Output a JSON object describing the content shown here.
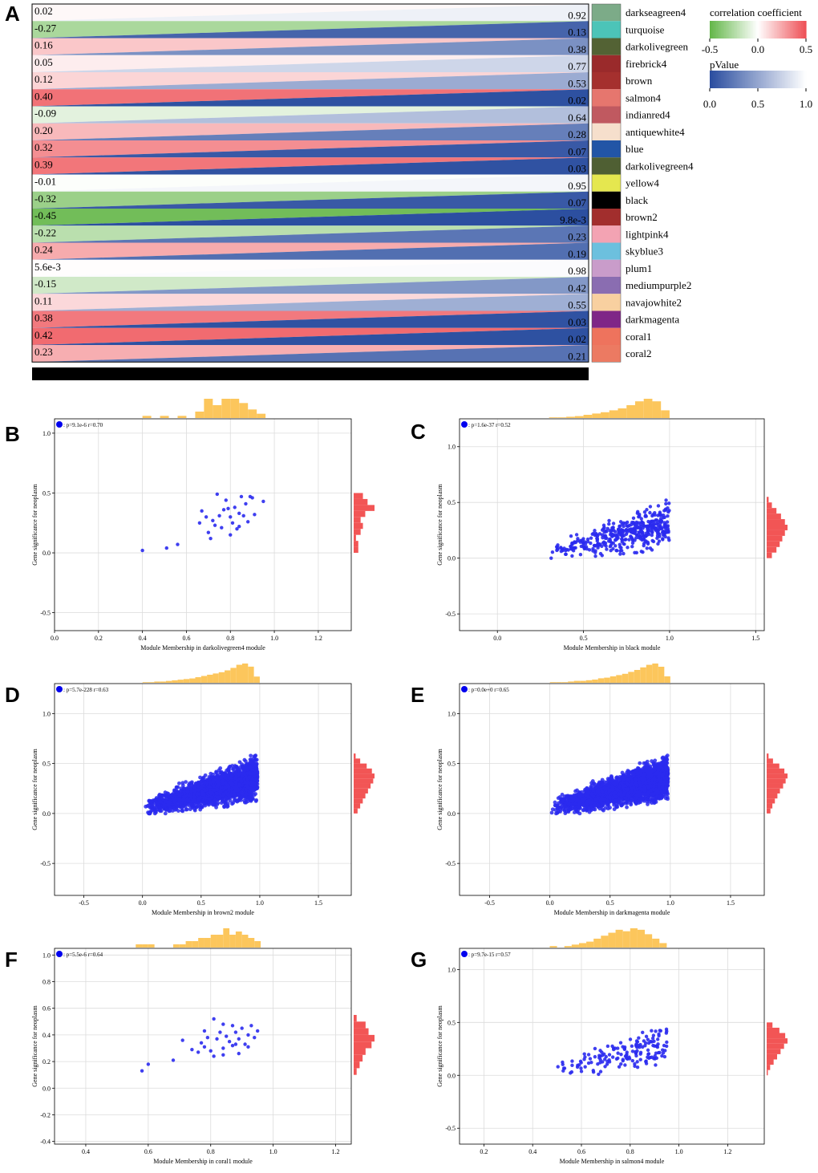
{
  "panel_labels": [
    "A",
    "B",
    "C",
    "D",
    "E",
    "F",
    "G"
  ],
  "colors": {
    "green": "#62b647",
    "red": "#ee4f55",
    "blue": "#2a4d9f",
    "scatter": "#2a2aee",
    "hist_top": "#fcc65c",
    "hist_right": "#f25555"
  },
  "heatmap": {
    "type": "heatmap",
    "rows": [
      {
        "module": "darkseagreen4",
        "corr": 0.02,
        "corr_label": "0.02",
        "p": 0.92,
        "p_label": "0.92",
        "swatch": "#7cab88"
      },
      {
        "module": "turquoise",
        "corr": -0.27,
        "corr_label": "-0.27",
        "p": 0.13,
        "p_label": "0.13",
        "swatch": "#4cc4b8"
      },
      {
        "module": "darkolivegreen",
        "corr": 0.16,
        "corr_label": "0.16",
        "p": 0.38,
        "p_label": "0.38",
        "swatch": "#536234"
      },
      {
        "module": "firebrick4",
        "corr": 0.05,
        "corr_label": "0.05",
        "p": 0.77,
        "p_label": "0.77",
        "swatch": "#9a2a2b"
      },
      {
        "module": "brown",
        "corr": 0.12,
        "corr_label": "0.12",
        "p": 0.53,
        "p_label": "0.53",
        "swatch": "#a5302e"
      },
      {
        "module": "salmon4",
        "corr": 0.4,
        "corr_label": "0.40",
        "p": 0.02,
        "p_label": "0.02",
        "swatch": "#e6766e"
      },
      {
        "module": "indianred4",
        "corr": -0.09,
        "corr_label": "-0.09",
        "p": 0.64,
        "p_label": "0.64",
        "swatch": "#c05960"
      },
      {
        "module": "antiquewhite4",
        "corr": 0.2,
        "corr_label": "0.20",
        "p": 0.28,
        "p_label": "0.28",
        "swatch": "#f6dfcc"
      },
      {
        "module": "blue",
        "corr": 0.32,
        "corr_label": "0.32",
        "p": 0.07,
        "p_label": "0.07",
        "swatch": "#2255a6"
      },
      {
        "module": "darkolivegreen4",
        "corr": 0.39,
        "corr_label": "0.39",
        "p": 0.03,
        "p_label": "0.03",
        "swatch": "#4f5f33"
      },
      {
        "module": "yellow4",
        "corr": -0.01,
        "corr_label": "-0.01",
        "p": 0.95,
        "p_label": "0.95",
        "swatch": "#e5e74f"
      },
      {
        "module": "black",
        "corr": -0.32,
        "corr_label": "-0.32",
        "p": 0.07,
        "p_label": "0.07",
        "swatch": "#000000"
      },
      {
        "module": "brown2",
        "corr": -0.45,
        "corr_label": "-0.45",
        "p": 0.0098,
        "p_label": "9.8e-3",
        "swatch": "#a22e2d"
      },
      {
        "module": "lightpink4",
        "corr": -0.22,
        "corr_label": "-0.22",
        "p": 0.23,
        "p_label": "0.23",
        "swatch": "#f3a3b3"
      },
      {
        "module": "skyblue3",
        "corr": 0.24,
        "corr_label": "0.24",
        "p": 0.19,
        "p_label": "0.19",
        "swatch": "#6cc0de"
      },
      {
        "module": "plum1",
        "corr": 0.0056,
        "corr_label": "5.6e-3",
        "p": 0.98,
        "p_label": "0.98",
        "swatch": "#c99cca"
      },
      {
        "module": "mediumpurple2",
        "corr": -0.15,
        "corr_label": "-0.15",
        "p": 0.42,
        "p_label": "0.42",
        "swatch": "#8a6db1"
      },
      {
        "module": "navajowhite2",
        "corr": 0.11,
        "corr_label": "0.11",
        "p": 0.55,
        "p_label": "0.55",
        "swatch": "#f8d0a0"
      },
      {
        "module": "darkmagenta",
        "corr": 0.38,
        "corr_label": "0.38",
        "p": 0.03,
        "p_label": "0.03",
        "swatch": "#7f2687"
      },
      {
        "module": "coral1",
        "corr": 0.42,
        "corr_label": "0.42",
        "p": 0.02,
        "p_label": "0.02",
        "swatch": "#ee735d"
      },
      {
        "module": "coral2",
        "corr": 0.23,
        "corr_label": "0.23",
        "p": 0.21,
        "p_label": "0.21",
        "swatch": "#ec7a62"
      }
    ],
    "legend_corr": {
      "title": "correlation coefficient",
      "ticks": [
        "-0.5",
        "0.0",
        "0.5"
      ],
      "range": [
        -0.5,
        0.5
      ]
    },
    "legend_p": {
      "title": "pValue",
      "ticks": [
        "0.0",
        "0.5",
        "1.0"
      ],
      "range": [
        0,
        1
      ]
    }
  },
  "chart_data": [
    {
      "panel": "B",
      "type": "scatter",
      "annotation": ": p=9.1e-6 r=0.70",
      "xlabel": "Module Membership in darkolivegreen4 module",
      "ylabel": "Gene significance for neoplasm",
      "xlim": [
        0.0,
        1.35
      ],
      "ylim": [
        -0.65,
        1.12
      ],
      "xticks": [
        0.0,
        0.2,
        0.4,
        0.6,
        0.8,
        1.0,
        1.2
      ],
      "xtick_labels": [
        "0.0",
        "0.2",
        "0.4",
        "0.6",
        "0.8",
        "1.0",
        "1.2"
      ],
      "yticks": [
        -0.5,
        0.0,
        0.5,
        1.0
      ],
      "ytick_labels": [
        "-0.5",
        "0.0",
        "0.5",
        "1.0"
      ],
      "points": [
        [
          0.4,
          0.02
        ],
        [
          0.51,
          0.04
        ],
        [
          0.56,
          0.07
        ],
        [
          0.66,
          0.25
        ],
        [
          0.67,
          0.35
        ],
        [
          0.69,
          0.3
        ],
        [
          0.7,
          0.17
        ],
        [
          0.71,
          0.12
        ],
        [
          0.72,
          0.27
        ],
        [
          0.73,
          0.23
        ],
        [
          0.74,
          0.49
        ],
        [
          0.75,
          0.31
        ],
        [
          0.76,
          0.21
        ],
        [
          0.77,
          0.36
        ],
        [
          0.78,
          0.44
        ],
        [
          0.79,
          0.37
        ],
        [
          0.8,
          0.15
        ],
        [
          0.8,
          0.3
        ],
        [
          0.81,
          0.25
        ],
        [
          0.82,
          0.38
        ],
        [
          0.83,
          0.2
        ],
        [
          0.84,
          0.33
        ],
        [
          0.84,
          0.22
        ],
        [
          0.85,
          0.47
        ],
        [
          0.86,
          0.31
        ],
        [
          0.87,
          0.41
        ],
        [
          0.88,
          0.26
        ],
        [
          0.89,
          0.47
        ],
        [
          0.9,
          0.46
        ],
        [
          0.91,
          0.32
        ],
        [
          0.95,
          0.43
        ]
      ],
      "hist_x": {
        "bins": [
          0.4,
          0.44,
          0.48,
          0.52,
          0.56,
          0.6,
          0.64,
          0.68,
          0.72,
          0.76,
          0.8,
          0.84,
          0.88,
          0.92
        ],
        "counts": [
          1,
          0,
          1,
          0,
          1,
          0,
          3,
          9,
          6,
          9,
          9,
          7,
          4,
          2
        ]
      },
      "hist_y": {
        "bins": [
          0.0,
          0.05,
          0.1,
          0.15,
          0.2,
          0.25,
          0.3,
          0.35,
          0.4,
          0.45
        ],
        "counts": [
          2,
          2,
          1,
          3,
          4,
          3,
          5,
          9,
          6,
          4
        ]
      }
    },
    {
      "panel": "C",
      "type": "scatter",
      "annotation": ": p=1.6e-37 r=0.52",
      "xlabel": "Module Membership in black module",
      "ylabel": "Gene significance for neoplasm",
      "xlim": [
        -0.22,
        1.55
      ],
      "ylim": [
        -0.65,
        1.25
      ],
      "xticks": [
        0.0,
        0.5,
        1.0,
        1.5
      ],
      "xtick_labels": [
        "0.0",
        "0.5",
        "1.0",
        "1.5"
      ],
      "yticks": [
        -0.5,
        0.0,
        0.5,
        1.0
      ],
      "ytick_labels": [
        "-0.5",
        "0.0",
        "0.5",
        "1.0"
      ],
      "cloud": {
        "n": 420,
        "x_min": 0.3,
        "x_max": 1.0,
        "y_min": 0.0,
        "y_max": 0.52,
        "seed": 7
      },
      "hist_x": {
        "bins": [
          0.3,
          0.35,
          0.4,
          0.45,
          0.5,
          0.55,
          0.6,
          0.65,
          0.7,
          0.75,
          0.8,
          0.85,
          0.9,
          0.95
        ],
        "counts": [
          1,
          1,
          2,
          3,
          5,
          7,
          9,
          12,
          15,
          20,
          26,
          30,
          26,
          12
        ]
      },
      "hist_y": {
        "bins": [
          0.0,
          0.05,
          0.1,
          0.15,
          0.2,
          0.25,
          0.3,
          0.35,
          0.4,
          0.45,
          0.5
        ],
        "counts": [
          8,
          15,
          20,
          24,
          28,
          32,
          28,
          22,
          15,
          8,
          3
        ]
      }
    },
    {
      "panel": "D",
      "type": "scatter",
      "annotation": ": p=5.7e-228 r=0.63",
      "xlabel": "Module Membership in brown2 module",
      "ylabel": "Gene significance for neoplasm",
      "xlim": [
        -0.75,
        1.78
      ],
      "ylim": [
        -0.82,
        1.3
      ],
      "xticks": [
        -0.5,
        0.0,
        0.5,
        1.0,
        1.5
      ],
      "xtick_labels": [
        "-0.5",
        "0.0",
        "0.5",
        "1.0",
        "1.5"
      ],
      "yticks": [
        -0.5,
        0.0,
        0.5,
        1.0
      ],
      "ytick_labels": [
        "-0.5",
        "0.0",
        "0.5",
        "1.0"
      ],
      "cloud": {
        "n": 2200,
        "x_min": 0.0,
        "x_max": 0.98,
        "y_min": 0.0,
        "y_max": 0.58,
        "seed": 19
      },
      "hist_x": {
        "bins": [
          0.0,
          0.05,
          0.1,
          0.15,
          0.2,
          0.25,
          0.3,
          0.35,
          0.4,
          0.45,
          0.5,
          0.55,
          0.6,
          0.65,
          0.7,
          0.75,
          0.8,
          0.85,
          0.9,
          0.95
        ],
        "counts": [
          1,
          1,
          2,
          2,
          3,
          4,
          5,
          6,
          7,
          9,
          11,
          13,
          15,
          17,
          20,
          24,
          29,
          31,
          26,
          10
        ]
      },
      "hist_y": {
        "bins": [
          0.0,
          0.05,
          0.1,
          0.15,
          0.2,
          0.25,
          0.3,
          0.35,
          0.4,
          0.45,
          0.5,
          0.55
        ],
        "counts": [
          6,
          10,
          14,
          18,
          22,
          26,
          30,
          32,
          28,
          20,
          10,
          3
        ]
      }
    },
    {
      "panel": "E",
      "type": "scatter",
      "annotation": ": p=0.0e+0 r=0.65",
      "xlabel": "Module Membership in darkmagenta module",
      "ylabel": "Gene significance for neoplasm",
      "xlim": [
        -0.75,
        1.78
      ],
      "ylim": [
        -0.82,
        1.3
      ],
      "xticks": [
        -0.5,
        0.0,
        0.5,
        1.0,
        1.5
      ],
      "xtick_labels": [
        "-0.5",
        "0.0",
        "0.5",
        "1.0",
        "1.5"
      ],
      "yticks": [
        -0.5,
        0.0,
        0.5,
        1.0
      ],
      "ytick_labels": [
        "-0.5",
        "0.0",
        "0.5",
        "1.0"
      ],
      "cloud": {
        "n": 2400,
        "x_min": 0.0,
        "x_max": 0.98,
        "y_min": 0.0,
        "y_max": 0.58,
        "seed": 31
      },
      "hist_x": {
        "bins": [
          0.0,
          0.05,
          0.1,
          0.15,
          0.2,
          0.25,
          0.3,
          0.35,
          0.4,
          0.45,
          0.5,
          0.55,
          0.6,
          0.65,
          0.7,
          0.75,
          0.8,
          0.85,
          0.9,
          0.95
        ],
        "counts": [
          1,
          1,
          1,
          2,
          3,
          3,
          4,
          5,
          7,
          8,
          10,
          12,
          14,
          17,
          20,
          24,
          28,
          30,
          25,
          10
        ]
      },
      "hist_y": {
        "bins": [
          0.0,
          0.05,
          0.1,
          0.15,
          0.2,
          0.25,
          0.3,
          0.35,
          0.4,
          0.45,
          0.5,
          0.55
        ],
        "counts": [
          6,
          9,
          13,
          17,
          21,
          26,
          30,
          33,
          28,
          20,
          10,
          3
        ]
      }
    },
    {
      "panel": "F",
      "type": "scatter",
      "annotation": ": p=5.5e-6 r=0.64",
      "xlabel": "Module Membership in coral1 module",
      "ylabel": "Gene significance for neoplasm",
      "xlim": [
        0.3,
        1.25
      ],
      "ylim": [
        -0.42,
        1.05
      ],
      "xticks": [
        0.4,
        0.6,
        0.8,
        1.0,
        1.2
      ],
      "xtick_labels": [
        "0.4",
        "0.6",
        "0.8",
        "1.0",
        "1.2"
      ],
      "yticks": [
        -0.4,
        -0.2,
        0.0,
        0.2,
        0.4,
        0.6,
        0.8,
        1.0
      ],
      "ytick_labels": [
        "-0.4",
        "-0.2",
        "0.0",
        "0.2",
        "0.4",
        "0.6",
        "0.8",
        "1.0"
      ],
      "points": [
        [
          0.58,
          0.13
        ],
        [
          0.6,
          0.18
        ],
        [
          0.68,
          0.21
        ],
        [
          0.71,
          0.36
        ],
        [
          0.74,
          0.29
        ],
        [
          0.76,
          0.27
        ],
        [
          0.77,
          0.34
        ],
        [
          0.78,
          0.31
        ],
        [
          0.79,
          0.38
        ],
        [
          0.8,
          0.28
        ],
        [
          0.81,
          0.52
        ],
        [
          0.82,
          0.37
        ],
        [
          0.83,
          0.42
        ],
        [
          0.84,
          0.3
        ],
        [
          0.84,
          0.25
        ],
        [
          0.85,
          0.39
        ],
        [
          0.86,
          0.35
        ],
        [
          0.87,
          0.47
        ],
        [
          0.87,
          0.32
        ],
        [
          0.88,
          0.42
        ],
        [
          0.89,
          0.37
        ],
        [
          0.89,
          0.26
        ],
        [
          0.9,
          0.45
        ],
        [
          0.91,
          0.33
        ],
        [
          0.92,
          0.4
        ],
        [
          0.92,
          0.31
        ],
        [
          0.93,
          0.47
        ],
        [
          0.94,
          0.38
        ],
        [
          0.95,
          0.43
        ],
        [
          0.84,
          0.48
        ],
        [
          0.78,
          0.43
        ],
        [
          0.88,
          0.33
        ],
        [
          0.81,
          0.24
        ]
      ],
      "hist_x": {
        "bins": [
          0.56,
          0.58,
          0.6,
          0.62,
          0.64,
          0.66,
          0.68,
          0.7,
          0.72,
          0.74,
          0.76,
          0.78,
          0.8,
          0.82,
          0.84,
          0.86,
          0.88,
          0.9,
          0.92,
          0.94
        ],
        "counts": [
          1,
          1,
          1,
          0,
          0,
          0,
          1,
          1,
          2,
          2,
          3,
          3,
          4,
          4,
          6,
          4,
          5,
          4,
          3,
          2
        ]
      },
      "hist_y": {
        "bins": [
          0.1,
          0.15,
          0.2,
          0.25,
          0.3,
          0.35,
          0.4,
          0.45,
          0.5
        ],
        "counts": [
          1,
          2,
          3,
          4,
          6,
          7,
          5,
          4,
          1
        ]
      }
    },
    {
      "panel": "G",
      "type": "scatter",
      "annotation": ": p=9.7e-15 r=0.57",
      "xlabel": "Module Membership in salmon4 module",
      "ylabel": "Gene significance for neoplasm",
      "xlim": [
        0.1,
        1.35
      ],
      "ylim": [
        -0.65,
        1.2
      ],
      "xticks": [
        0.2,
        0.4,
        0.6,
        0.8,
        1.0,
        1.2
      ],
      "xtick_labels": [
        "0.2",
        "0.4",
        "0.6",
        "0.8",
        "1.0",
        "1.2"
      ],
      "yticks": [
        -0.5,
        0.0,
        0.5,
        1.0
      ],
      "ytick_labels": [
        "-0.5",
        "0.0",
        "0.5",
        "1.0"
      ],
      "cloud": {
        "n": 160,
        "x_min": 0.47,
        "x_max": 0.95,
        "y_min": 0.0,
        "y_max": 0.49,
        "seed": 53
      },
      "hist_x": {
        "bins": [
          0.47,
          0.5,
          0.53,
          0.56,
          0.59,
          0.62,
          0.65,
          0.68,
          0.71,
          0.74,
          0.77,
          0.8,
          0.83,
          0.86,
          0.89,
          0.92
        ],
        "counts": [
          1,
          0,
          1,
          2,
          3,
          4,
          6,
          8,
          10,
          12,
          11,
          13,
          12,
          9,
          6,
          3
        ]
      },
      "hist_y": {
        "bins": [
          0.0,
          0.05,
          0.1,
          0.15,
          0.2,
          0.25,
          0.3,
          0.35,
          0.4,
          0.45
        ],
        "counts": [
          1,
          3,
          6,
          9,
          12,
          15,
          18,
          16,
          11,
          5
        ]
      }
    }
  ]
}
